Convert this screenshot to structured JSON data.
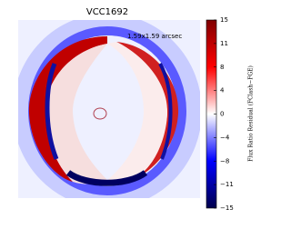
{
  "chart_data": {
    "type": "image",
    "title": "VCC1692",
    "annotation": "1.59x1.59 arcsec",
    "colorbar": {
      "label": "Flux Ratio Residual (FClash−FGE)",
      "colors": [
        "#00004c",
        "#0000ff",
        "#ffffff",
        "#ff0000",
        "#800000"
      ],
      "ylim": [
        -15,
        15
      ],
      "yticks": [
        15,
        {
          "value": 11.25,
          "label": "11"
        },
        {
          "value": 7.5,
          "label": "8"
        },
        {
          "value": 3.75,
          "label": "4"
        },
        0,
        {
          "value": -3.75,
          "label": "−4"
        },
        {
          "value": -7.5,
          "label": "−8"
        },
        {
          "value": -11.25,
          "label": "−11"
        },
        {
          "value": -15,
          "label": "−15"
        }
      ]
    }
  }
}
